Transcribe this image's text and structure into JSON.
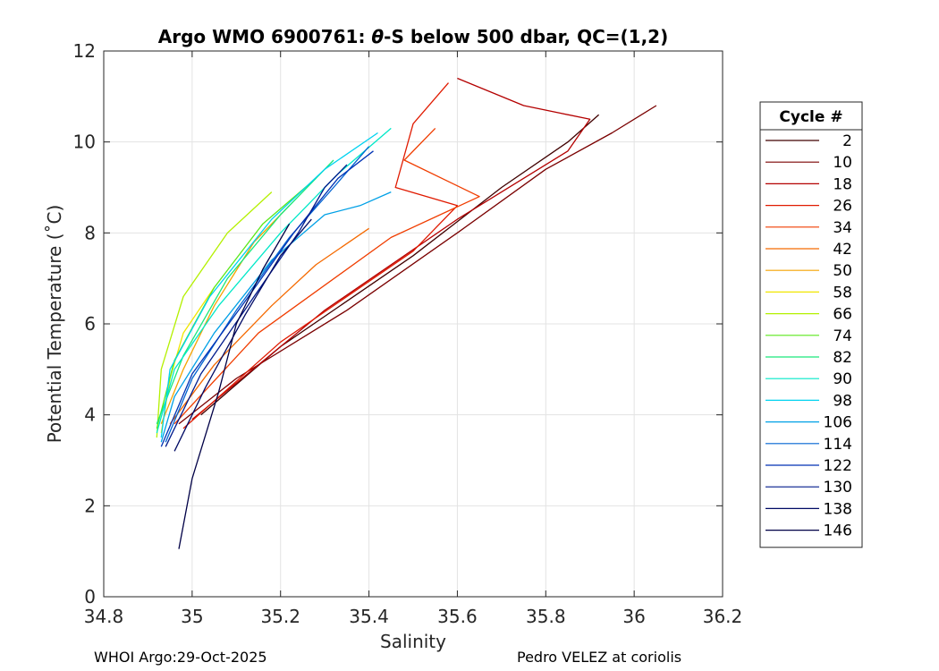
{
  "chart_data": {
    "type": "line",
    "title": "Argo WMO 6900761: θ-S below 500 dbar,  QC=(1,2)",
    "title_prefix": "Argo WMO 6900761: ",
    "title_theta": "θ",
    "title_suffix": "-S below 500 dbar,  QC=(1,2)",
    "xlabel": "Salinity",
    "ylabel": "Potential Temperature (˚C)",
    "xlim": [
      34.8,
      36.2
    ],
    "ylim": [
      0,
      12
    ],
    "x_ticks": [
      34.8,
      35,
      35.2,
      35.4,
      35.6,
      35.8,
      36,
      36.2
    ],
    "x_tick_labels": [
      "34.8",
      "35",
      "35.2",
      "35.4",
      "35.6",
      "35.8",
      "36",
      "36.2"
    ],
    "y_ticks": [
      0,
      2,
      4,
      6,
      8,
      10,
      12
    ],
    "y_tick_labels": [
      "0",
      "2",
      "4",
      "6",
      "8",
      "10",
      "12"
    ],
    "grid": true,
    "legend": {
      "title": "Cycle #",
      "placement": "right-outside",
      "entries": [
        {
          "label": "2",
          "color": "#400000"
        },
        {
          "label": "10",
          "color": "#7a0000"
        },
        {
          "label": "18",
          "color": "#b40000"
        },
        {
          "label": "26",
          "color": "#e01a00"
        },
        {
          "label": "34",
          "color": "#f03d00"
        },
        {
          "label": "42",
          "color": "#f56a00"
        },
        {
          "label": "50",
          "color": "#f5a300"
        },
        {
          "label": "58",
          "color": "#f0e600"
        },
        {
          "label": "66",
          "color": "#b4f000"
        },
        {
          "label": "74",
          "color": "#5ae81a"
        },
        {
          "label": "82",
          "color": "#1ae87a"
        },
        {
          "label": "90",
          "color": "#00e8c8"
        },
        {
          "label": "98",
          "color": "#00d2f0"
        },
        {
          "label": "106",
          "color": "#00a0e6"
        },
        {
          "label": "114",
          "color": "#0064d2"
        },
        {
          "label": "122",
          "color": "#0032b4"
        },
        {
          "label": "130",
          "color": "#001a8c"
        },
        {
          "label": "138",
          "color": "#000a64"
        },
        {
          "label": "146",
          "color": "#000046"
        }
      ]
    },
    "series": [
      {
        "name": "2",
        "color": "#400000",
        "x": [
          35.92,
          35.85,
          35.7,
          35.5,
          35.2,
          35.02
        ],
        "y": [
          10.6,
          10.0,
          9.0,
          7.5,
          5.5,
          4.0
        ]
      },
      {
        "name": "10",
        "color": "#7a0000",
        "x": [
          36.05,
          35.95,
          35.8,
          35.6,
          35.35,
          35.1,
          34.97
        ],
        "y": [
          10.8,
          10.2,
          9.4,
          8.0,
          6.3,
          4.8,
          3.8
        ]
      },
      {
        "name": "18",
        "color": "#b40000",
        "x": [
          35.6,
          35.75,
          35.9,
          35.85,
          35.6,
          35.3,
          35.0
        ],
        "y": [
          11.4,
          10.8,
          10.5,
          9.8,
          8.3,
          6.3,
          3.9
        ]
      },
      {
        "name": "26",
        "color": "#e01a00",
        "x": [
          35.58,
          35.5,
          35.46,
          35.6,
          35.5,
          35.2,
          34.98
        ],
        "y": [
          11.3,
          10.4,
          9.0,
          8.6,
          7.6,
          5.6,
          3.7
        ]
      },
      {
        "name": "34",
        "color": "#f03d00",
        "x": [
          35.55,
          35.48,
          35.65,
          35.45,
          35.15,
          34.96
        ],
        "y": [
          10.3,
          9.6,
          8.8,
          7.9,
          5.8,
          3.8
        ]
      },
      {
        "name": "42",
        "color": "#f56a00",
        "x": [
          35.4,
          35.28,
          35.18,
          35.05,
          34.95
        ],
        "y": [
          8.1,
          7.3,
          6.4,
          5.1,
          3.8
        ]
      },
      {
        "name": "50",
        "color": "#f5a300",
        "x": [
          35.22,
          35.14,
          35.05,
          34.98,
          34.93
        ],
        "y": [
          8.6,
          7.8,
          6.4,
          5.0,
          3.8
        ]
      },
      {
        "name": "58",
        "color": "#f0e600",
        "x": [
          35.05,
          34.98,
          34.95,
          34.93
        ],
        "y": [
          6.8,
          5.8,
          4.8,
          3.6
        ]
      },
      {
        "name": "66",
        "color": "#b4f000",
        "x": [
          35.18,
          35.08,
          34.98,
          34.93,
          34.92
        ],
        "y": [
          8.9,
          8.0,
          6.6,
          5.0,
          3.5
        ]
      },
      {
        "name": "74",
        "color": "#5ae81a",
        "x": [
          35.28,
          35.16,
          35.05,
          34.96,
          34.92
        ],
        "y": [
          9.2,
          8.2,
          6.8,
          5.2,
          3.7
        ]
      },
      {
        "name": "82",
        "color": "#1ae87a",
        "x": [
          35.32,
          35.2,
          35.08,
          34.98,
          34.92
        ],
        "y": [
          9.6,
          8.4,
          7.0,
          5.3,
          3.8
        ]
      },
      {
        "name": "90",
        "color": "#00e8c8",
        "x": [
          35.45,
          35.33,
          35.2,
          35.06,
          34.96,
          34.92
        ],
        "y": [
          10.3,
          9.3,
          8.0,
          6.4,
          5.0,
          3.6
        ]
      },
      {
        "name": "98",
        "color": "#00d2f0",
        "x": [
          35.42,
          35.3,
          35.18,
          35.04,
          34.95,
          34.93
        ],
        "y": [
          10.2,
          9.4,
          8.3,
          6.6,
          5.0,
          3.5
        ]
      },
      {
        "name": "106",
        "color": "#00a0e6",
        "x": [
          35.45,
          35.38,
          35.3,
          35.18,
          35.05,
          34.96,
          34.93
        ],
        "y": [
          8.9,
          8.6,
          8.4,
          7.4,
          5.8,
          4.4,
          3.4
        ]
      },
      {
        "name": "114",
        "color": "#0064d2",
        "x": [
          35.4,
          35.32,
          35.22,
          35.1,
          35.0,
          34.94
        ],
        "y": [
          9.9,
          9.0,
          7.9,
          6.3,
          4.8,
          3.4
        ]
      },
      {
        "name": "122",
        "color": "#0032b4",
        "x": [
          35.41,
          35.33,
          35.23,
          35.12,
          35.0,
          34.93
        ],
        "y": [
          9.8,
          9.2,
          8.0,
          6.5,
          4.9,
          3.3
        ]
      },
      {
        "name": "130",
        "color": "#001a8c",
        "x": [
          35.35,
          35.3,
          35.24,
          35.14,
          35.02,
          34.94
        ],
        "y": [
          9.5,
          9.0,
          8.0,
          6.6,
          4.9,
          3.3
        ]
      },
      {
        "name": "138",
        "color": "#000a64",
        "x": [
          35.27,
          35.2,
          35.12,
          35.03,
          34.96
        ],
        "y": [
          8.3,
          7.5,
          6.2,
          4.6,
          3.2
        ]
      },
      {
        "name": "146",
        "color": "#000046",
        "x": [
          35.22,
          35.16,
          35.1,
          35.06,
          35.0,
          34.97
        ],
        "y": [
          8.2,
          7.2,
          6.0,
          4.5,
          2.6,
          1.05
        ]
      }
    ]
  },
  "footer": {
    "left": "WHOI Argo:29-Oct-2025",
    "right": "Pedro VELEZ at coriolis"
  }
}
